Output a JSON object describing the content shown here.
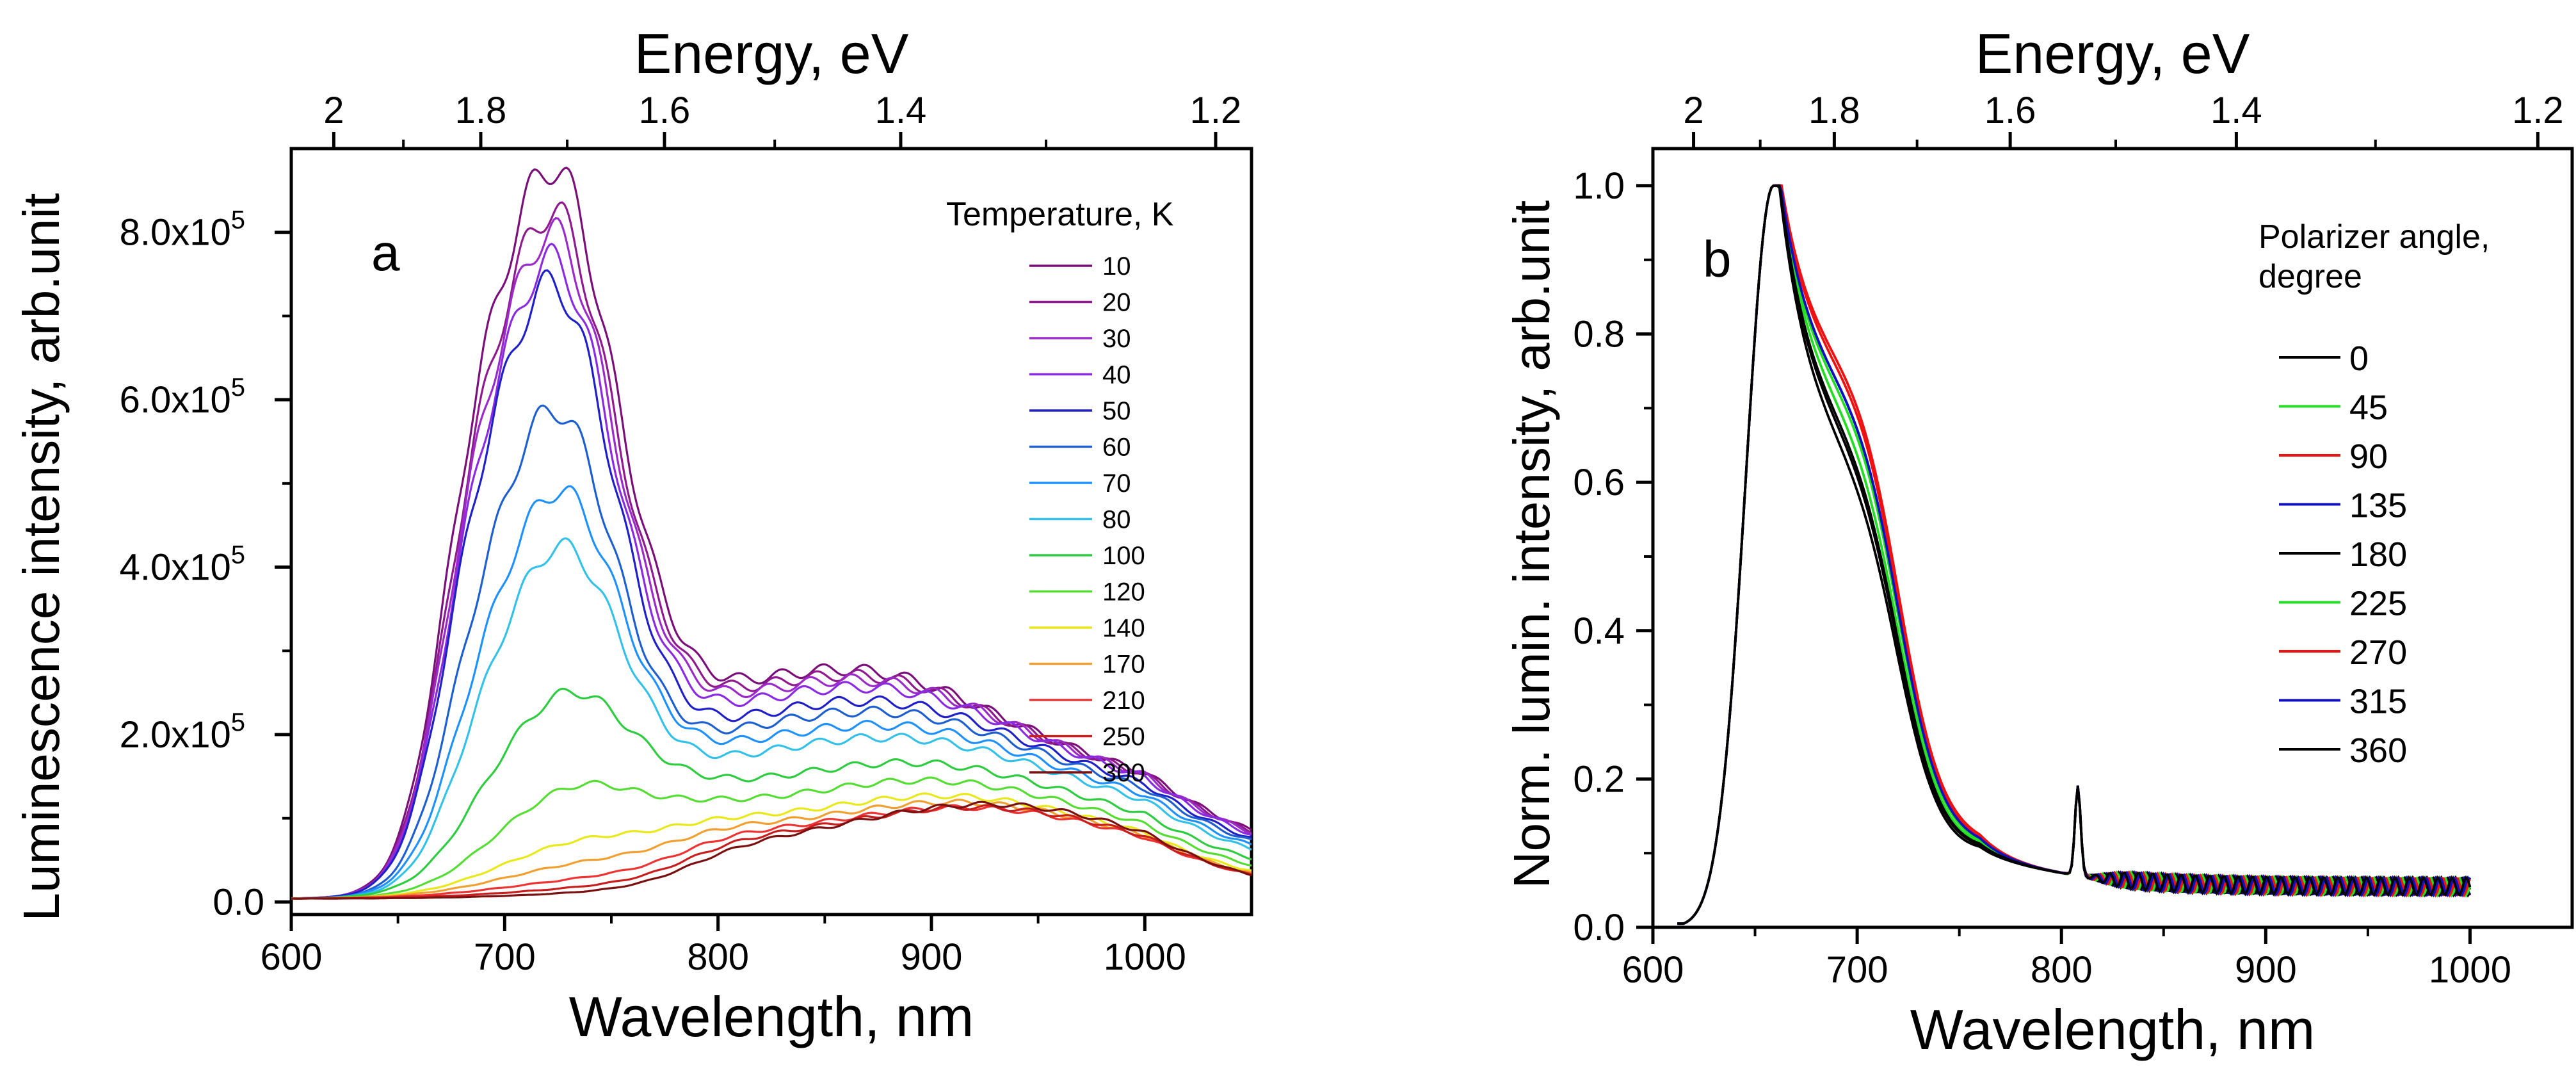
{
  "chart_data": [
    {
      "type": "line",
      "panel_label": "a",
      "xlabel": "Wavelength, nm",
      "ylabel": "Luminescence intensity, arb.unit",
      "top_axis_label": "Energy, eV",
      "xlim": [
        600,
        1050
      ],
      "ylim": [
        -15000,
        900000
      ],
      "x_ticks": [
        "600",
        "700",
        "800",
        "900",
        "1000"
      ],
      "x_tick_values": [
        600,
        700,
        800,
        900,
        1000
      ],
      "y_ticks": [
        {
          "value": 0,
          "mantissa": "0.0",
          "exp": ""
        },
        {
          "value": 200000,
          "mantissa": "2.0x10",
          "exp": "5"
        },
        {
          "value": 400000,
          "mantissa": "4.0x10",
          "exp": "5"
        },
        {
          "value": 600000,
          "mantissa": "6.0x10",
          "exp": "5"
        },
        {
          "value": 800000,
          "mantissa": "8.0x10",
          "exp": "5"
        }
      ],
      "top_ticks": [
        "2",
        "1.8",
        "1.6",
        "1.4",
        "1.2"
      ],
      "top_tick_values": [
        2,
        1.8,
        1.6,
        1.4,
        1.2
      ],
      "legend_title": "Temperature, K",
      "legend_position": "top-right",
      "series": [
        {
          "name": "10",
          "color": "#7a0f7a",
          "peak": 845000,
          "shoulder": 240000,
          "tail": 100000,
          "dip": 0,
          "width": 30,
          "peak_x": 722
        },
        {
          "name": "20",
          "color": "#8e1a8e",
          "peak": 795000,
          "shoulder": 235000,
          "tail": 98000,
          "dip": 0,
          "width": 30,
          "peak_x": 722
        },
        {
          "name": "30",
          "color": "#9b2bc8",
          "peak": 772000,
          "shoulder": 232000,
          "tail": 96000,
          "dip": 0,
          "width": 30,
          "peak_x": 722
        },
        {
          "name": "40",
          "color": "#8a2be2",
          "peak": 742000,
          "shoulder": 225000,
          "tail": 94000,
          "dip": 0,
          "width": 30,
          "peak_x": 722
        },
        {
          "name": "50",
          "color": "#2020c8",
          "peak": 716000,
          "shoulder": 210000,
          "tail": 90000,
          "dip": 0,
          "width": 30,
          "peak_x": 722
        },
        {
          "name": "60",
          "color": "#1e5fd0",
          "peak": 570000,
          "shoulder": 200000,
          "tail": 86000,
          "dip": 0,
          "width": 30,
          "peak_x": 723
        },
        {
          "name": "70",
          "color": "#1e90ff",
          "peak": 475000,
          "shoulder": 185000,
          "tail": 82000,
          "dip": 0,
          "width": 31,
          "peak_x": 725
        },
        {
          "name": "80",
          "color": "#33c1e8",
          "peak": 410000,
          "shoulder": 170000,
          "tail": 80000,
          "dip": 0,
          "width": 31,
          "peak_x": 726
        },
        {
          "name": "100",
          "color": "#2ecc40",
          "peak": 238000,
          "shoulder": 135000,
          "tail": 78000,
          "dip": 0,
          "width": 34,
          "peak_x": 730
        },
        {
          "name": "120",
          "color": "#55dd33",
          "peak": 128000,
          "shoulder": 110000,
          "tail": 76000,
          "dip": 0,
          "width": 36,
          "peak_x": 735
        },
        {
          "name": "140",
          "color": "#e8e81a",
          "peak": 65000,
          "shoulder": 88000,
          "tail": 74000,
          "dip": 0,
          "width": 40,
          "peak_x": 740
        },
        {
          "name": "170",
          "color": "#f0a030",
          "peak": 40000,
          "shoulder": 78000,
          "tail": 74000,
          "dip": 0,
          "width": 44,
          "peak_x": 745
        },
        {
          "name": "210",
          "color": "#ee3333",
          "peak": 22000,
          "shoulder": 72000,
          "tail": 72000,
          "dip": 0,
          "width": 48,
          "peak_x": 750
        },
        {
          "name": "250",
          "color": "#c81e1e",
          "peak": 12000,
          "shoulder": 68000,
          "tail": 76000,
          "dip": 0,
          "width": 50,
          "peak_x": 755
        },
        {
          "name": "300",
          "color": "#7a1010",
          "peak": 6000,
          "shoulder": 64000,
          "tail": 84000,
          "dip": 0,
          "width": 50,
          "peak_x": 760
        }
      ]
    },
    {
      "type": "line",
      "panel_label": "b",
      "xlabel": "Wavelength, nm",
      "ylabel": "Norm. lumin. intensity, arb.unit",
      "top_axis_label": "Energy, eV",
      "xlim": [
        600,
        1050
      ],
      "ylim": [
        0,
        1.05
      ],
      "x_ticks": [
        "600",
        "700",
        "800",
        "900",
        "1000"
      ],
      "x_tick_values": [
        600,
        700,
        800,
        900,
        1000
      ],
      "y_ticks": [
        "0.0",
        "0.2",
        "0.4",
        "0.6",
        "0.8",
        "1.0"
      ],
      "y_tick_values": [
        0,
        0.2,
        0.4,
        0.6,
        0.8,
        1.0
      ],
      "top_ticks": [
        "2",
        "1.8",
        "1.6",
        "1.4",
        "1.2"
      ],
      "top_tick_values": [
        2,
        1.8,
        1.6,
        1.4,
        1.2
      ],
      "legend_title_lines": [
        "Polarizer angle,",
        "degree"
      ],
      "legend_position": "right",
      "series": [
        {
          "name": "0",
          "color": "#000000",
          "shoulder": 0.62,
          "off": -0.01
        },
        {
          "name": "45",
          "color": "#22dd22",
          "shoulder": 0.66,
          "off": 0.0
        },
        {
          "name": "90",
          "color": "#ee1111",
          "shoulder": 0.7,
          "off": 0.012
        },
        {
          "name": "135",
          "color": "#1010c0",
          "shoulder": 0.67,
          "off": 0.005
        },
        {
          "name": "180",
          "color": "#000000",
          "shoulder": 0.6,
          "off": -0.015
        },
        {
          "name": "225",
          "color": "#22dd22",
          "shoulder": 0.65,
          "off": -0.004
        },
        {
          "name": "270",
          "color": "#ee1111",
          "shoulder": 0.69,
          "off": 0.008
        },
        {
          "name": "315",
          "color": "#1010c0",
          "shoulder": 0.67,
          "off": 0.004
        },
        {
          "name": "360",
          "color": "#000000",
          "shoulder": 0.63,
          "off": -0.008
        }
      ]
    }
  ]
}
